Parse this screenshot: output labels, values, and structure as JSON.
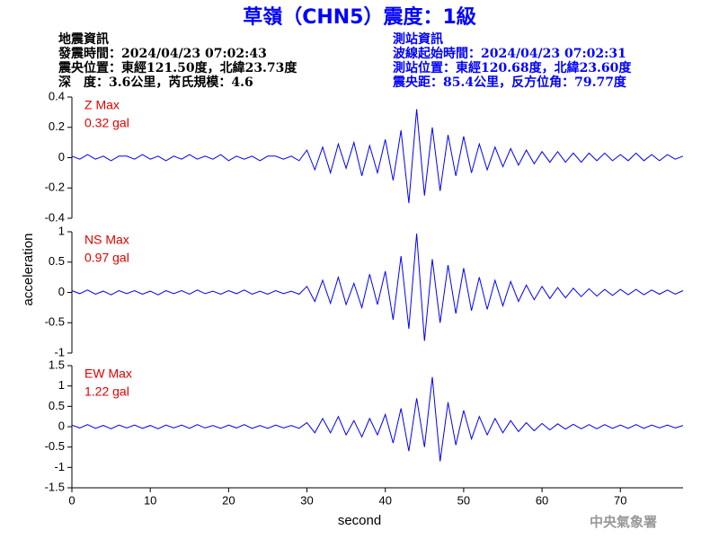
{
  "header": {
    "title": "草嶺（CHN5）震度：1級",
    "left": [
      "地震資訊",
      "發震時間：2024/04/23 07:02:43",
      "震央位置：東經121.50度，北緯23.73度",
      "深　度：3.6公里，芮氏規模：4.6"
    ],
    "right": [
      "測站資訊",
      "波線起始時間：2024/04/23 07:02:31",
      "測站位置：東經120.68度，北緯23.60度",
      "震央距：85.4公里，反方位角：79.77度"
    ]
  },
  "footer": "中央氣象署",
  "chart_data": [
    {
      "type": "line",
      "annotations": [
        "Z Max",
        "0.32 gal"
      ],
      "color": "#0000ff",
      "annotation_color": "#e00000",
      "xlim": [
        0,
        78
      ],
      "ylim": [
        -0.4,
        0.4
      ],
      "yticks": [
        -0.4,
        -0.2,
        0,
        0.2,
        0.4
      ],
      "x": [
        0,
        1,
        2,
        3,
        4,
        5,
        6,
        7,
        8,
        9,
        10,
        11,
        12,
        13,
        14,
        15,
        16,
        17,
        18,
        19,
        20,
        21,
        22,
        23,
        24,
        25,
        26,
        27,
        28,
        29,
        30,
        31,
        32,
        33,
        34,
        35,
        36,
        37,
        38,
        39,
        40,
        41,
        42,
        43,
        44,
        45,
        46,
        47,
        48,
        49,
        50,
        51,
        52,
        53,
        54,
        55,
        56,
        57,
        58,
        59,
        60,
        61,
        62,
        63,
        64,
        65,
        66,
        67,
        68,
        69,
        70,
        71,
        72,
        73,
        74,
        75,
        76,
        77,
        78
      ],
      "values": [
        0.01,
        -0.01,
        0.02,
        -0.01,
        0.01,
        -0.02,
        0.01,
        0.01,
        -0.01,
        0.02,
        -0.01,
        0.01,
        -0.02,
        0.01,
        -0.01,
        0.02,
        -0.01,
        0.01,
        -0.01,
        0.02,
        -0.02,
        0.01,
        -0.01,
        0.01,
        -0.02,
        0.01,
        0.01,
        -0.01,
        0.01,
        -0.02,
        0.05,
        -0.08,
        0.07,
        -0.1,
        0.09,
        -0.07,
        0.1,
        -0.12,
        0.08,
        -0.1,
        0.12,
        -0.15,
        0.18,
        -0.3,
        0.32,
        -0.25,
        0.2,
        -0.22,
        0.15,
        -0.12,
        0.14,
        -0.1,
        0.09,
        -0.08,
        0.07,
        -0.06,
        0.06,
        -0.05,
        0.05,
        -0.04,
        0.04,
        -0.03,
        0.04,
        -0.03,
        0.03,
        -0.03,
        0.03,
        -0.02,
        0.03,
        -0.02,
        0.02,
        -0.02,
        0.03,
        -0.02,
        0.02,
        -0.02,
        0.02,
        -0.01,
        0.01
      ]
    },
    {
      "type": "line",
      "annotations": [
        "NS Max",
        "0.97 gal"
      ],
      "color": "#0000ff",
      "annotation_color": "#e00000",
      "ylabel": "acceleration",
      "xlim": [
        0,
        78
      ],
      "ylim": [
        -1,
        1
      ],
      "yticks": [
        -1,
        -0.5,
        0,
        0.5,
        1
      ],
      "x": [
        0,
        1,
        2,
        3,
        4,
        5,
        6,
        7,
        8,
        9,
        10,
        11,
        12,
        13,
        14,
        15,
        16,
        17,
        18,
        19,
        20,
        21,
        22,
        23,
        24,
        25,
        26,
        27,
        28,
        29,
        30,
        31,
        32,
        33,
        34,
        35,
        36,
        37,
        38,
        39,
        40,
        41,
        42,
        43,
        44,
        45,
        46,
        47,
        48,
        49,
        50,
        51,
        52,
        53,
        54,
        55,
        56,
        57,
        58,
        59,
        60,
        61,
        62,
        63,
        64,
        65,
        66,
        67,
        68,
        69,
        70,
        71,
        72,
        73,
        74,
        75,
        76,
        77,
        78
      ],
      "values": [
        0.03,
        -0.02,
        0.04,
        -0.03,
        0.02,
        -0.04,
        0.03,
        -0.02,
        0.03,
        -0.03,
        0.02,
        -0.04,
        0.03,
        -0.02,
        0.03,
        -0.03,
        0.04,
        -0.02,
        0.02,
        -0.03,
        0.03,
        -0.02,
        0.04,
        -0.03,
        0.02,
        -0.03,
        0.03,
        -0.02,
        0.02,
        -0.03,
        0.1,
        -0.15,
        0.2,
        -0.18,
        0.25,
        -0.2,
        0.15,
        -0.25,
        0.3,
        -0.2,
        0.35,
        -0.45,
        0.6,
        -0.6,
        0.97,
        -0.8,
        0.55,
        -0.5,
        0.45,
        -0.35,
        0.4,
        -0.3,
        0.25,
        -0.28,
        0.2,
        -0.22,
        0.18,
        -0.15,
        0.12,
        -0.12,
        0.1,
        -0.1,
        0.08,
        -0.09,
        0.07,
        -0.07,
        0.06,
        -0.06,
        0.05,
        -0.05,
        0.05,
        -0.04,
        0.05,
        -0.04,
        0.04,
        -0.03,
        0.04,
        -0.03,
        0.03
      ]
    },
    {
      "type": "line",
      "annotations": [
        "EW Max",
        "1.22 gal"
      ],
      "color": "#0000ff",
      "annotation_color": "#e00000",
      "xlabel": "second",
      "xlim": [
        0,
        78
      ],
      "xticks": [
        0,
        10,
        20,
        30,
        40,
        50,
        60,
        70
      ],
      "ylim": [
        -1.5,
        1.5
      ],
      "yticks": [
        -1.5,
        -1,
        -0.5,
        0,
        0.5,
        1,
        1.5
      ],
      "x": [
        0,
        1,
        2,
        3,
        4,
        5,
        6,
        7,
        8,
        9,
        10,
        11,
        12,
        13,
        14,
        15,
        16,
        17,
        18,
        19,
        20,
        21,
        22,
        23,
        24,
        25,
        26,
        27,
        28,
        29,
        30,
        31,
        32,
        33,
        34,
        35,
        36,
        37,
        38,
        39,
        40,
        41,
        42,
        43,
        44,
        45,
        46,
        47,
        48,
        49,
        50,
        51,
        52,
        53,
        54,
        55,
        56,
        57,
        58,
        59,
        60,
        61,
        62,
        63,
        64,
        65,
        66,
        67,
        68,
        69,
        70,
        71,
        72,
        73,
        74,
        75,
        76,
        77,
        78
      ],
      "values": [
        0.04,
        -0.03,
        0.05,
        -0.04,
        0.03,
        -0.05,
        0.04,
        -0.03,
        0.04,
        -0.04,
        0.03,
        -0.05,
        0.04,
        -0.03,
        0.04,
        -0.04,
        0.05,
        -0.03,
        0.03,
        -0.04,
        0.04,
        -0.03,
        0.05,
        -0.04,
        0.03,
        -0.04,
        0.04,
        -0.03,
        0.03,
        -0.04,
        0.1,
        -0.15,
        0.2,
        -0.15,
        0.25,
        -0.2,
        0.15,
        -0.25,
        0.2,
        -0.2,
        0.3,
        -0.4,
        0.45,
        -0.6,
        0.7,
        -0.5,
        1.22,
        -0.85,
        0.6,
        -0.45,
        0.4,
        -0.3,
        0.25,
        -0.2,
        0.2,
        -0.15,
        0.15,
        -0.12,
        0.1,
        -0.1,
        0.08,
        -0.08,
        0.07,
        -0.06,
        0.06,
        -0.05,
        0.05,
        -0.05,
        0.05,
        -0.04,
        0.04,
        -0.04,
        0.05,
        -0.04,
        0.04,
        -0.03,
        0.04,
        -0.03,
        0.03
      ]
    }
  ]
}
